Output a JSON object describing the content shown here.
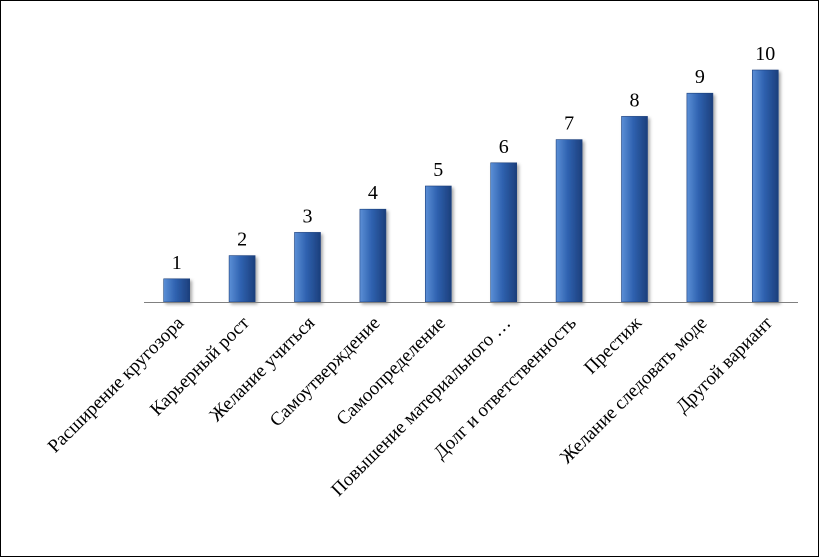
{
  "chart_data": {
    "type": "bar",
    "categories": [
      "Расширение кругозора",
      "Карьерный рост",
      "Желание учиться",
      "Самоутверждение",
      "Самоопределение",
      "Повышение материального …",
      "Долг и ответственность",
      "Престиж",
      "Желание следовать моде",
      "Другой вариант"
    ],
    "values": [
      1,
      2,
      3,
      4,
      5,
      6,
      7,
      8,
      9,
      10
    ],
    "data_labels": [
      "1",
      "2",
      "3",
      "4",
      "5",
      "6",
      "7",
      "8",
      "9",
      "10"
    ],
    "title": "",
    "xlabel": "",
    "ylabel": "",
    "ylim": [
      0,
      10
    ],
    "grid": false,
    "legend": "none",
    "colors": {
      "bar_light": "#5b8fd6",
      "bar_mid": "#2f62b0",
      "bar_dark": "#1c3f7c",
      "axis": "#808080",
      "text": "#000000",
      "border": "#000000"
    }
  }
}
